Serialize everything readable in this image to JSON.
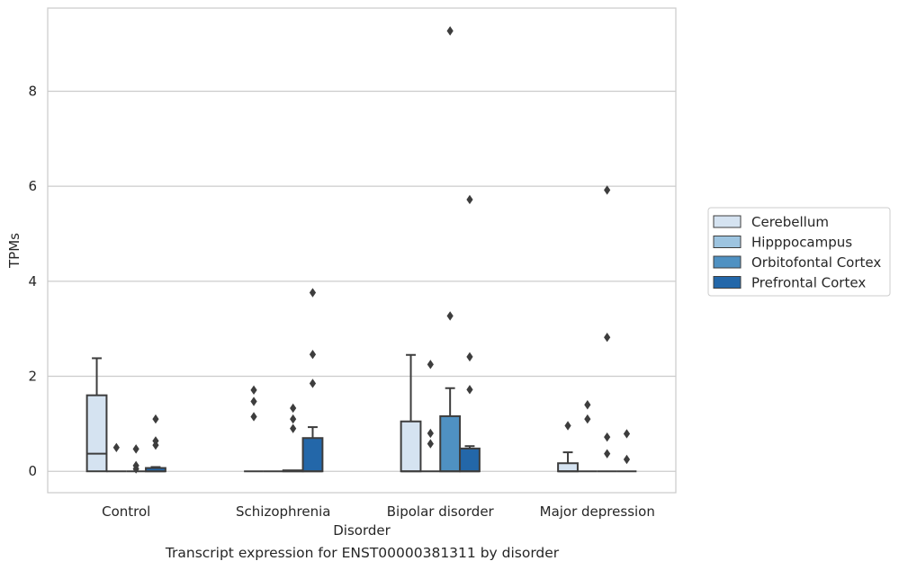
{
  "caption": "Transcript expression for ENST00000381311 by disorder",
  "chart_data": {
    "type": "box",
    "xlabel": "Disorder",
    "ylabel": "TPMs",
    "ylim": [
      -0.45,
      9.75
    ],
    "yticks": [
      0,
      2,
      4,
      6,
      8
    ],
    "grid": "horizontal",
    "legend_position": "right",
    "categories": [
      "Control",
      "Schizophrenia",
      "Bipolar disorder",
      "Major depression"
    ],
    "series": [
      {
        "name": "Cerebellum",
        "color": "#d5e3f1",
        "boxes": [
          {
            "q1": 0,
            "median": 0.37,
            "q3": 1.6,
            "whislo": 0,
            "whishi": 2.38,
            "fliers": []
          },
          {
            "q1": 0,
            "median": 0,
            "q3": 0,
            "whislo": 0,
            "whishi": 0,
            "fliers": [
              1.15,
              1.47,
              1.71
            ]
          },
          {
            "q1": 0,
            "median": 0,
            "q3": 1.05,
            "whislo": 0,
            "whishi": 2.45,
            "fliers": []
          },
          {
            "q1": 0,
            "median": 0,
            "q3": 0.17,
            "whislo": 0,
            "whishi": 0.4,
            "fliers": [
              0.96
            ]
          }
        ]
      },
      {
        "name": "Hipppocampus",
        "color": "#9dc4e0",
        "boxes": [
          {
            "q1": 0,
            "median": 0,
            "q3": 0,
            "whislo": 0,
            "whishi": 0,
            "fliers": [
              0.5
            ]
          },
          {
            "q1": 0,
            "median": 0,
            "q3": 0,
            "whislo": 0,
            "whishi": 0,
            "fliers": []
          },
          {
            "q1": 0,
            "median": 0,
            "q3": 0,
            "whislo": 0,
            "whishi": 0,
            "fliers": [
              0.58,
              0.8,
              2.25
            ]
          },
          {
            "q1": 0,
            "median": 0,
            "q3": 0,
            "whislo": 0,
            "whishi": 0,
            "fliers": [
              1.1,
              1.4
            ]
          }
        ]
      },
      {
        "name": "Orbitofontal Cortex",
        "color": "#4f91c2",
        "boxes": [
          {
            "q1": 0,
            "median": 0,
            "q3": 0,
            "whislo": 0,
            "whishi": 0,
            "fliers": [
              0.05,
              0.12,
              0.47
            ]
          },
          {
            "q1": 0,
            "median": 0,
            "q3": 0.02,
            "whislo": 0,
            "whishi": 0.02,
            "fliers": [
              0.9,
              1.1,
              1.33
            ]
          },
          {
            "q1": 0,
            "median": 0,
            "q3": 1.16,
            "whislo": 0,
            "whishi": 1.75,
            "fliers": [
              3.27,
              9.27
            ]
          },
          {
            "q1": 0,
            "median": 0,
            "q3": 0,
            "whislo": 0,
            "whishi": 0,
            "fliers": [
              0.37,
              0.72,
              2.82,
              5.92
            ]
          }
        ]
      },
      {
        "name": "Prefrontal Cortex",
        "color": "#2367a9",
        "boxes": [
          {
            "q1": 0,
            "median": 0,
            "q3": 0.07,
            "whislo": 0,
            "whishi": 0.09,
            "fliers": [
              0.55,
              0.64,
              1.1
            ]
          },
          {
            "q1": 0,
            "median": 0,
            "q3": 0.7,
            "whislo": 0,
            "whishi": 0.93,
            "fliers": [
              1.85,
              2.46,
              3.76
            ]
          },
          {
            "q1": 0,
            "median": 0,
            "q3": 0.48,
            "whislo": 0,
            "whishi": 0.53,
            "fliers": [
              1.72,
              2.41,
              5.72
            ]
          },
          {
            "q1": 0,
            "median": 0,
            "q3": 0,
            "whislo": 0,
            "whishi": 0,
            "fliers": [
              0.25,
              0.79
            ]
          }
        ]
      }
    ]
  }
}
